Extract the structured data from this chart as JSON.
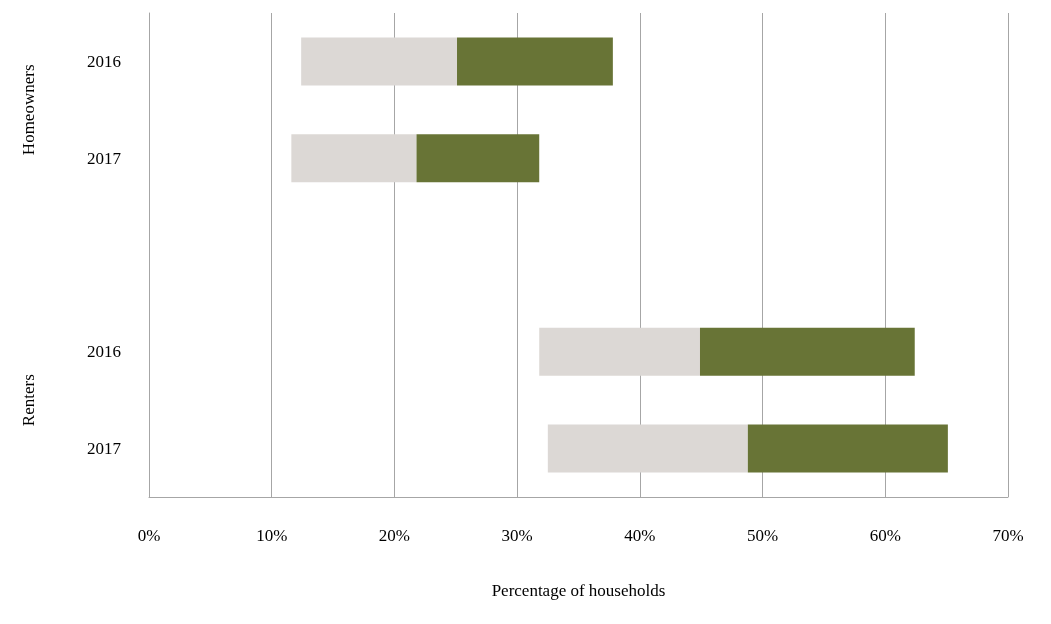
{
  "chart_data": {
    "type": "bar",
    "orientation": "horizontal",
    "xlabel": "Percentage of households",
    "categories": [
      "2016",
      "2017",
      null,
      "2016",
      "2017"
    ],
    "series": [
      {
        "color": "#dcd8d5",
        "base": [
          12.4,
          11.6,
          null,
          31.8,
          32.5
        ],
        "values": [
          12.7,
          10.2,
          null,
          13.1,
          16.3
        ]
      },
      {
        "color": "#687436",
        "base": [
          25.1,
          21.8,
          null,
          44.9,
          48.8
        ],
        "values": [
          12.7,
          10.0,
          null,
          17.5,
          16.3
        ]
      }
    ],
    "annotations": [
      "Homeowners",
      "Renters"
    ],
    "xlim": [
      0,
      70
    ],
    "xticks": [
      {
        "value": 0,
        "label": "0%"
      },
      {
        "value": 10,
        "label": "10%"
      },
      {
        "value": 20,
        "label": "20%"
      },
      {
        "value": 30,
        "label": "30%"
      },
      {
        "value": 40,
        "label": "40%"
      },
      {
        "value": 50,
        "label": "50%"
      },
      {
        "value": 60,
        "label": "60%"
      },
      {
        "value": 70,
        "label": "70%"
      }
    ],
    "grid": "x"
  }
}
